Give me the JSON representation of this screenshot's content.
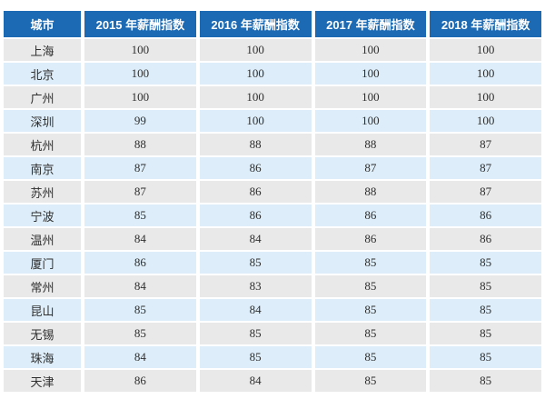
{
  "colors": {
    "header_bg": "#1c6ab3",
    "header_text": "#ffffff",
    "row_grey": "#e9e9e9",
    "row_blue": "#ddeefa",
    "cell_text": "#2f2f2f"
  },
  "chart_data": {
    "type": "table",
    "columns": [
      "城市",
      "2015 年薪酬指数",
      "2016 年薪酬指数",
      "2017 年薪酬指数",
      "2018 年薪酬指数"
    ],
    "rows": [
      [
        "上海",
        100,
        100,
        100,
        100
      ],
      [
        "北京",
        100,
        100,
        100,
        100
      ],
      [
        "广州",
        100,
        100,
        100,
        100
      ],
      [
        "深圳",
        99,
        100,
        100,
        100
      ],
      [
        "杭州",
        88,
        88,
        88,
        87
      ],
      [
        "南京",
        87,
        86,
        87,
        87
      ],
      [
        "苏州",
        87,
        86,
        88,
        87
      ],
      [
        "宁波",
        85,
        86,
        86,
        86
      ],
      [
        "温州",
        84,
        84,
        86,
        86
      ],
      [
        "厦门",
        86,
        85,
        85,
        85
      ],
      [
        "常州",
        84,
        83,
        85,
        85
      ],
      [
        "昆山",
        85,
        84,
        85,
        85
      ],
      [
        "无锡",
        85,
        85,
        85,
        85
      ],
      [
        "珠海",
        84,
        85,
        85,
        85
      ],
      [
        "天津",
        86,
        84,
        85,
        85
      ]
    ]
  }
}
